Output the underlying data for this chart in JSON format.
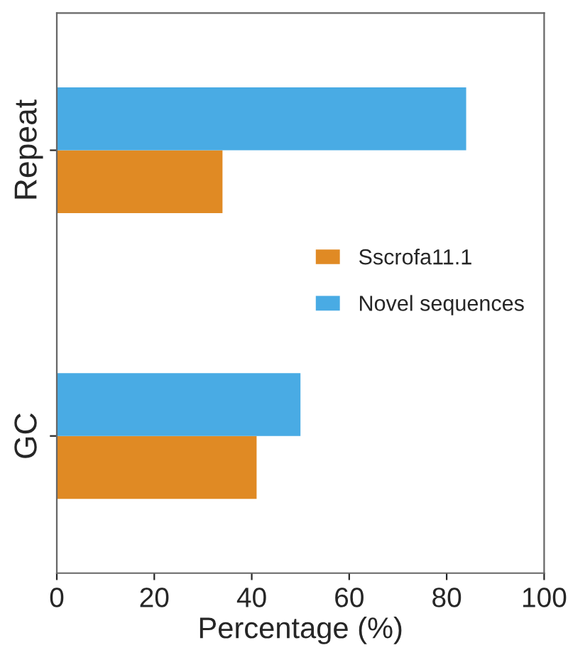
{
  "chart_data": {
    "type": "bar",
    "orientation": "horizontal",
    "xlabel": "Percentage (%)",
    "categories": [
      "Repeat",
      "GC"
    ],
    "series": [
      {
        "name": "Sscrofa11.1",
        "color": "#e08a24",
        "values": [
          34,
          41
        ]
      },
      {
        "name": "Novel sequences",
        "color": "#49abe4",
        "values": [
          84,
          50
        ]
      }
    ],
    "xlim": [
      0,
      100
    ],
    "xticks": [
      0,
      20,
      40,
      60,
      80,
      100
    ],
    "grid": false,
    "legend": "right"
  }
}
